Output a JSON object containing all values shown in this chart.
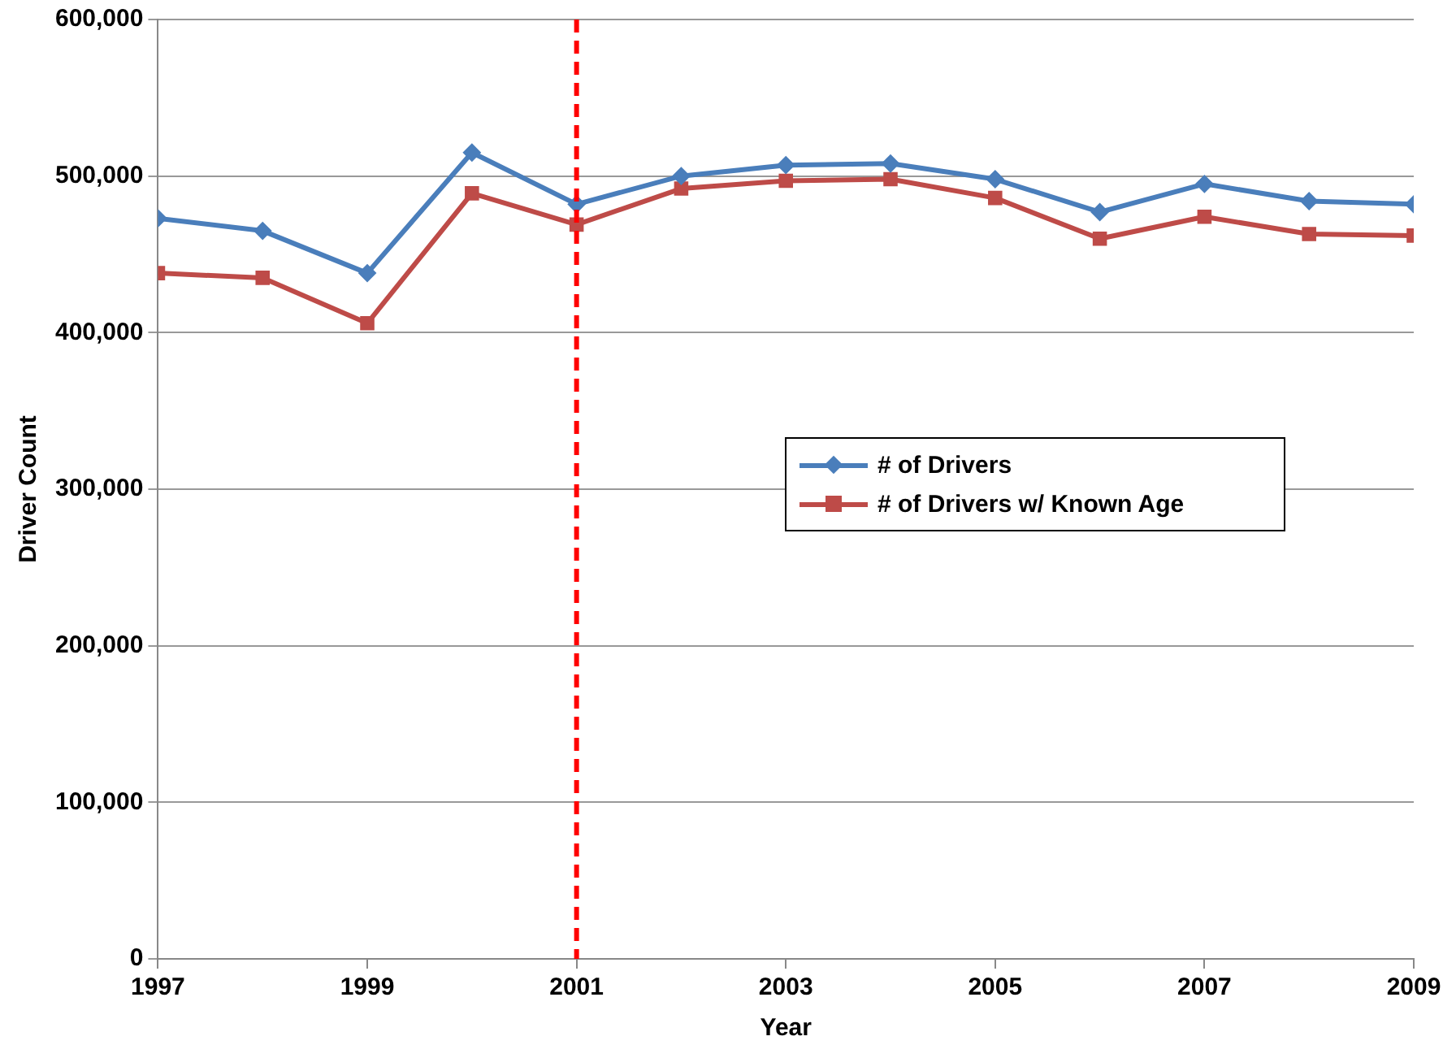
{
  "chart_data": {
    "type": "line",
    "xlabel": "Year",
    "ylabel": "Driver Count",
    "x": [
      1997,
      1998,
      1999,
      2000,
      2001,
      2002,
      2003,
      2004,
      2005,
      2006,
      2007,
      2008,
      2009
    ],
    "xlim": [
      1997,
      2009
    ],
    "xticks": [
      1997,
      1999,
      2001,
      2003,
      2005,
      2007,
      2009
    ],
    "ylim": [
      0,
      600000
    ],
    "yticks": [
      {
        "value": 0,
        "label": "0"
      },
      {
        "value": 100000,
        "label": "100,000"
      },
      {
        "value": 200000,
        "label": "200,000"
      },
      {
        "value": 300000,
        "label": "300,000"
      },
      {
        "value": 400000,
        "label": "400,000"
      },
      {
        "value": 500000,
        "label": "500,000"
      },
      {
        "value": 600000,
        "label": "600,000"
      }
    ],
    "series": [
      {
        "name": "# of Drivers",
        "color": "#4a7ebb",
        "marker": "diamond",
        "values": [
          473000,
          465000,
          438000,
          515000,
          482000,
          500000,
          507000,
          508000,
          498000,
          477000,
          495000,
          484000,
          482000
        ]
      },
      {
        "name": "# of Drivers w/ Known Age",
        "color": "#be4b48",
        "marker": "square",
        "values": [
          438000,
          435000,
          406000,
          489000,
          469000,
          492000,
          497000,
          498000,
          486000,
          460000,
          474000,
          463000,
          462000
        ]
      }
    ],
    "ref_lines": [
      {
        "axis": "x",
        "value": 2001,
        "color": "#ff0000",
        "line_style": "dashed"
      }
    ],
    "grid": "y",
    "legend": "right",
    "line_style": "solid"
  }
}
